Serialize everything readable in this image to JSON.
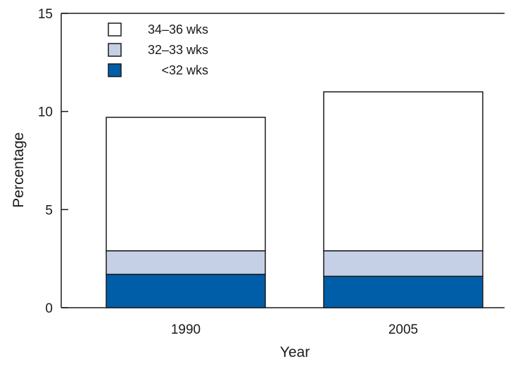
{
  "chart_data": {
    "type": "bar",
    "stacked": true,
    "title": "",
    "xlabel": "Year",
    "ylabel": "Percentage",
    "categories": [
      "1990",
      "2005"
    ],
    "ylim": [
      0,
      15
    ],
    "yticks": [
      0,
      5,
      10,
      15
    ],
    "grid": false,
    "legend_position": "top-left",
    "series": [
      {
        "name": "<32 wks",
        "values": [
          1.7,
          1.6
        ],
        "color": "#005ea9"
      },
      {
        "name": "32–33 wks",
        "values": [
          1.2,
          1.3
        ],
        "color": "#c5d0e6"
      },
      {
        "name": "34–36 wks",
        "values": [
          6.8,
          8.1
        ],
        "color": "#ffffff"
      }
    ],
    "legend_order": [
      "34–36 wks",
      "32–33 wks",
      "<32 wks"
    ]
  }
}
